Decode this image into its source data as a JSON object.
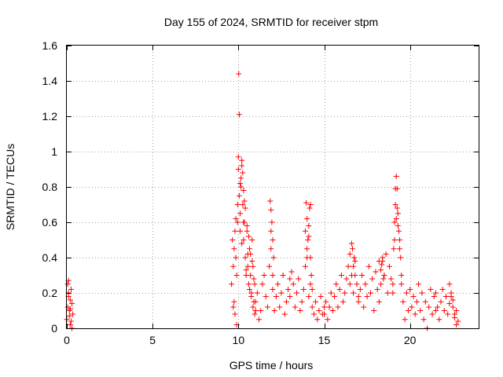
{
  "chart_data": {
    "type": "scatter",
    "title": "Day 155 of 2024, SRMTID for receiver stpm",
    "xlabel": "GPS time / hours",
    "ylabel": "SRMTID / TECUs",
    "xlim": [
      0,
      24
    ],
    "ylim": [
      0,
      1.6
    ],
    "xticks": [
      0,
      5,
      10,
      15,
      20
    ],
    "yticks": [
      0,
      0.2,
      0.4,
      0.6,
      0.8,
      1,
      1.2,
      1.4,
      1.6
    ],
    "xtick_labels": [
      "0",
      "5",
      "10",
      "15",
      "20"
    ],
    "ytick_labels": [
      "0",
      "0.2",
      "0.4",
      "0.6",
      "0.8",
      "1",
      "1.2",
      "1.4",
      "1.6"
    ],
    "grid": true,
    "marker": "+",
    "color": "#ff0000",
    "series": [
      {
        "name": "stpm",
        "x": [
          0.0,
          0.05,
          0.1,
          0.15,
          0.2,
          0.25,
          0.3,
          0.35,
          0.05,
          0.1,
          0.15,
          0.2,
          0.25,
          0.1,
          0.2,
          0.3,
          9.6,
          9.65,
          9.7,
          9.75,
          9.8,
          9.85,
          9.9,
          9.95,
          10.0,
          10.05,
          10.1,
          10.15,
          10.2,
          10.25,
          10.3,
          10.35,
          10.4,
          10.45,
          10.5,
          10.55,
          10.6,
          10.65,
          10.7,
          10.75,
          10.8,
          10.85,
          10.9,
          10.95,
          11.0,
          9.7,
          9.8,
          9.9,
          10.0,
          10.02,
          10.05,
          10.1,
          10.15,
          10.2,
          10.25,
          10.3,
          10.35,
          10.4,
          10.5,
          10.6,
          10.7,
          10.8,
          10.9,
          9.75,
          9.85,
          9.95,
          10.1,
          10.2,
          10.3,
          10.45,
          10.55,
          10.65,
          10.75,
          10.85,
          10.95,
          11.0,
          11.1,
          11.2,
          11.3,
          11.4,
          11.5,
          11.6,
          11.7,
          11.8,
          11.9,
          12.0,
          12.1,
          12.2,
          12.3,
          12.4,
          12.5,
          12.6,
          12.7,
          12.8,
          12.9,
          13.0,
          11.85,
          11.9,
          11.95,
          12.0,
          12.05,
          11.9,
          12.0,
          13.0,
          13.1,
          13.2,
          13.3,
          13.4,
          13.5,
          13.6,
          13.7,
          13.8,
          13.9,
          14.0,
          14.1,
          14.2,
          14.3,
          14.4,
          14.5,
          14.6,
          14.7,
          14.8,
          14.9,
          15.0,
          13.9,
          13.95,
          14.0,
          14.05,
          14.1,
          14.15,
          14.2,
          14.25,
          14.3,
          14.0,
          14.1,
          14.2,
          15.0,
          15.1,
          15.2,
          15.3,
          15.4,
          15.5,
          15.6,
          15.7,
          15.8,
          15.9,
          16.0,
          16.1,
          16.2,
          16.3,
          16.4,
          16.5,
          16.6,
          16.7,
          16.8,
          16.9,
          17.0,
          16.5,
          16.6,
          16.7,
          16.8,
          16.65,
          16.75,
          17.0,
          17.1,
          17.2,
          17.3,
          17.4,
          17.5,
          17.6,
          17.7,
          17.8,
          17.9,
          18.0,
          18.1,
          18.2,
          18.3,
          18.4,
          18.5,
          18.6,
          18.7,
          18.8,
          18.9,
          19.0,
          18.2,
          18.3,
          18.4,
          18.5,
          18.35,
          18.45,
          19.0,
          19.05,
          19.1,
          19.15,
          19.2,
          19.25,
          19.3,
          19.35,
          19.4,
          19.45,
          19.5,
          19.1,
          19.2,
          19.3,
          19.4,
          19.15,
          19.25,
          19.5,
          19.6,
          19.7,
          19.8,
          19.9,
          20.0,
          20.1,
          20.2,
          20.3,
          20.4,
          20.5,
          20.6,
          20.7,
          20.8,
          20.9,
          21.0,
          21.1,
          21.2,
          21.3,
          21.4,
          21.5,
          21.5,
          21.6,
          21.7,
          21.8,
          21.9,
          22.0,
          22.1,
          22.2,
          22.3,
          22.4,
          22.5,
          22.6,
          22.7,
          22.8,
          22.5,
          22.6,
          22.7,
          22.3,
          22.4
        ],
        "y": [
          0.05,
          0.25,
          0.18,
          0.1,
          0.02,
          0.22,
          0.14,
          0.08,
          0.12,
          0.2,
          0.07,
          0.16,
          0.04,
          0.27,
          0.11,
          0.0,
          0.25,
          0.5,
          0.35,
          0.15,
          0.55,
          0.4,
          0.3,
          0.6,
          0.9,
          0.75,
          0.65,
          0.85,
          0.95,
          0.7,
          0.5,
          0.6,
          0.4,
          0.3,
          0.55,
          0.35,
          0.25,
          0.45,
          0.3,
          0.2,
          0.5,
          0.35,
          0.15,
          0.25,
          0.1,
          0.12,
          0.08,
          0.02,
          0.97,
          1.44,
          1.21,
          0.82,
          0.8,
          0.92,
          0.88,
          0.78,
          0.72,
          0.68,
          0.58,
          0.52,
          0.42,
          0.38,
          0.28,
          0.45,
          0.62,
          0.7,
          0.55,
          0.48,
          0.6,
          0.33,
          0.42,
          0.22,
          0.18,
          0.12,
          0.08,
          0.15,
          0.2,
          0.05,
          0.1,
          0.25,
          0.3,
          0.18,
          0.12,
          0.35,
          0.45,
          0.22,
          0.1,
          0.18,
          0.25,
          0.12,
          0.2,
          0.3,
          0.08,
          0.15,
          0.22,
          0.28,
          0.72,
          0.67,
          0.6,
          0.5,
          0.4,
          0.55,
          0.3,
          0.18,
          0.32,
          0.25,
          0.12,
          0.2,
          0.28,
          0.1,
          0.15,
          0.22,
          0.35,
          0.4,
          0.18,
          0.25,
          0.12,
          0.08,
          0.15,
          0.05,
          0.1,
          0.18,
          0.08,
          0.12,
          0.55,
          0.71,
          0.62,
          0.5,
          0.58,
          0.68,
          0.4,
          0.3,
          0.22,
          0.45,
          0.52,
          0.7,
          0.08,
          0.15,
          0.05,
          0.12,
          0.2,
          0.1,
          0.18,
          0.25,
          0.12,
          0.22,
          0.3,
          0.15,
          0.2,
          0.28,
          0.35,
          0.25,
          0.3,
          0.2,
          0.38,
          0.25,
          0.18,
          0.42,
          0.48,
          0.35,
          0.3,
          0.45,
          0.4,
          0.15,
          0.22,
          0.3,
          0.12,
          0.25,
          0.18,
          0.35,
          0.2,
          0.28,
          0.1,
          0.32,
          0.22,
          0.15,
          0.25,
          0.38,
          0.3,
          0.42,
          0.2,
          0.35,
          0.28,
          0.25,
          0.38,
          0.33,
          0.4,
          0.3,
          0.36,
          0.28,
          0.2,
          0.45,
          0.6,
          0.79,
          0.86,
          0.79,
          0.65,
          0.55,
          0.5,
          0.4,
          0.3,
          0.5,
          0.62,
          0.58,
          0.45,
          0.7,
          0.68,
          0.25,
          0.15,
          0.05,
          0.2,
          0.1,
          0.22,
          0.12,
          0.18,
          0.08,
          0.15,
          0.25,
          0.1,
          0.2,
          0.05,
          0.15,
          0.0,
          0.12,
          0.22,
          0.08,
          0.18,
          0.1,
          0.2,
          0.12,
          0.05,
          0.15,
          0.22,
          0.1,
          0.18,
          0.08,
          0.14,
          0.2,
          0.12,
          0.06,
          0.1,
          0.04,
          0.16,
          0.08,
          0.02,
          0.25,
          0.18
        ]
      }
    ]
  }
}
